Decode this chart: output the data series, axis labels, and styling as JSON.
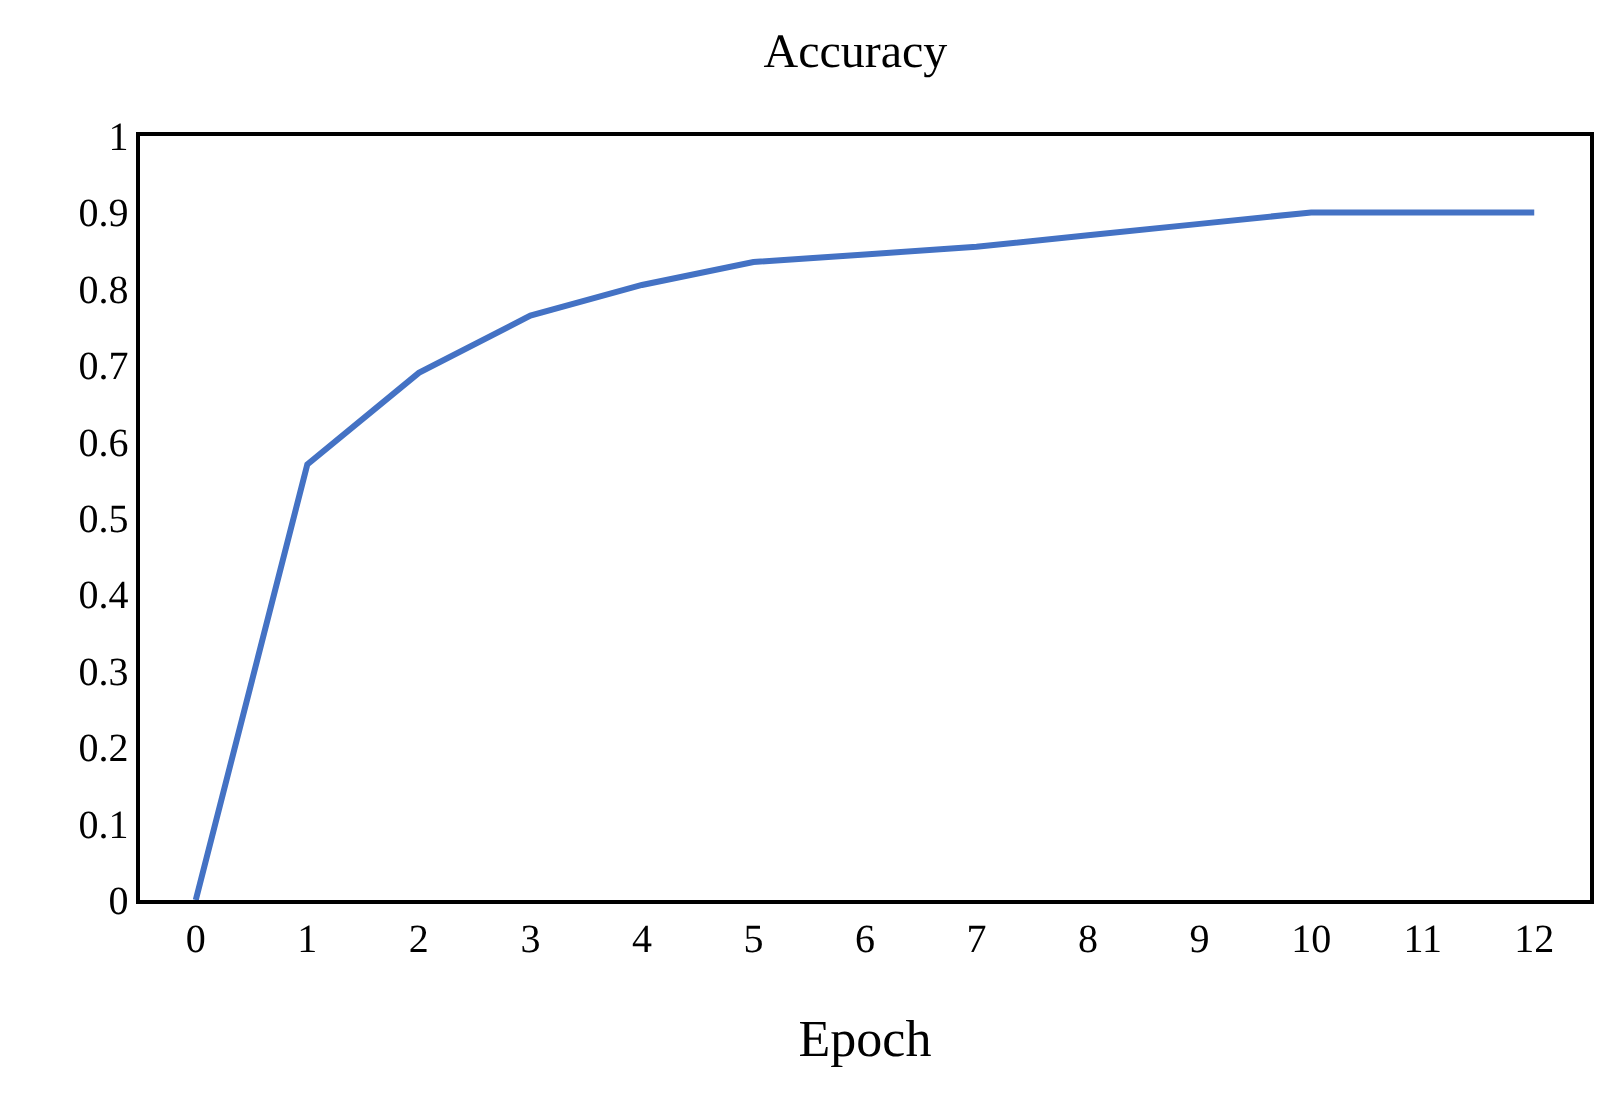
{
  "chart_data": {
    "type": "line",
    "title": "Accuracy",
    "xlabel": "Epoch",
    "x": [
      0,
      1,
      2,
      3,
      4,
      5,
      6,
      7,
      8,
      9,
      10,
      11,
      12
    ],
    "series": [
      {
        "color": "#4472c4",
        "values": [
          0,
          0.57,
          0.69,
          0.765,
          0.805,
          0.835,
          0.845,
          0.855,
          0.87,
          0.885,
          0.9,
          0.9,
          0.9
        ]
      }
    ],
    "xlim": [
      -0.5,
      12.5
    ],
    "xticks": [
      0,
      1,
      2,
      3,
      4,
      5,
      6,
      7,
      8,
      9,
      10,
      11,
      12
    ],
    "ylim": [
      0,
      1
    ],
    "yticks": [
      0,
      0.1,
      0.2,
      0.3,
      0.4,
      0.5,
      0.6,
      0.7,
      0.8,
      0.9,
      1
    ],
    "marker": "none",
    "line_style": "solid"
  }
}
